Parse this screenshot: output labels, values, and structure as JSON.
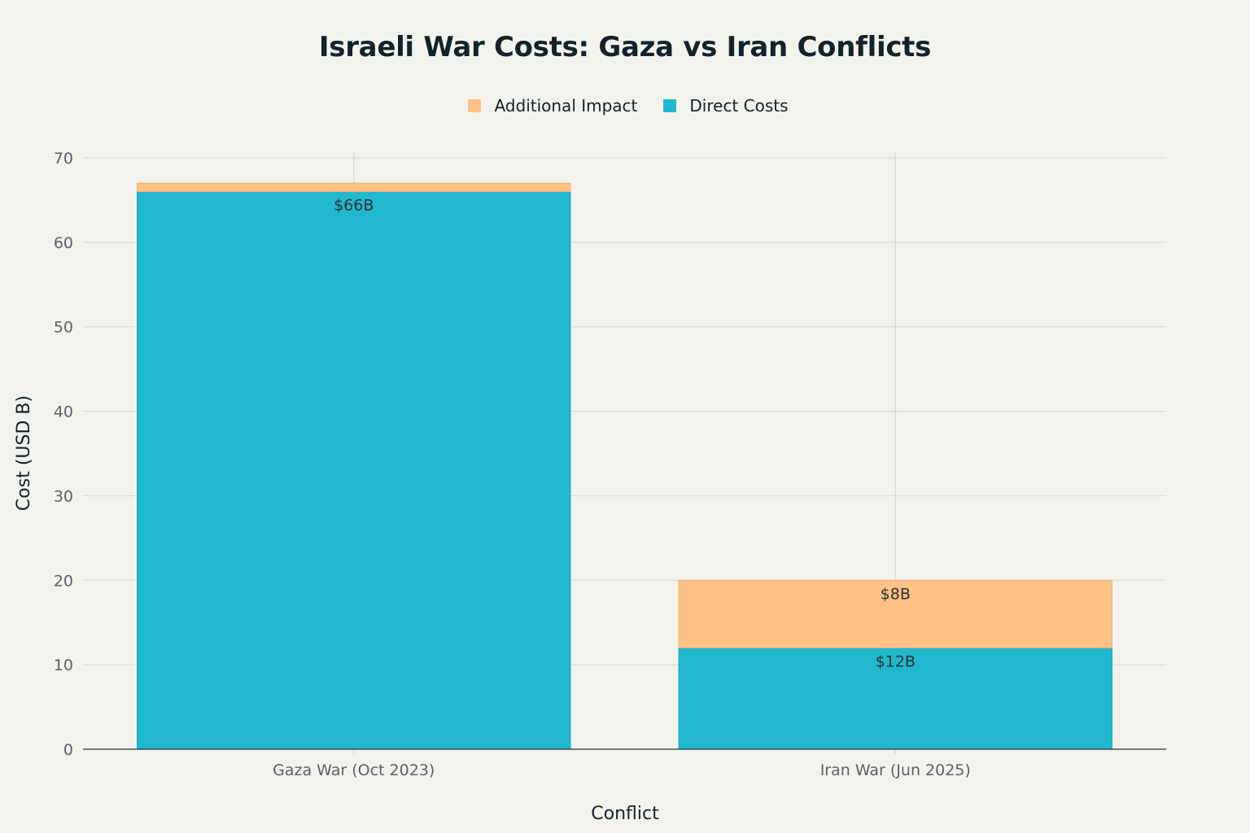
{
  "chart_data": {
    "type": "bar",
    "stacked": true,
    "title": "Israeli War Costs: Gaza vs Iran Conflicts",
    "xlabel": "Conflict",
    "ylabel": "Cost (USD B)",
    "categories": [
      "Gaza War (Oct 2023)",
      "Iran War (Jun 2025)"
    ],
    "series": [
      {
        "name": "Direct Costs",
        "color": "#21b7cd",
        "values": [
          66,
          12
        ],
        "labels": [
          "$66B",
          "$12B"
        ]
      },
      {
        "name": "Additional Impact",
        "color": "#ffc185",
        "values": [
          1,
          8
        ],
        "labels": [
          "",
          "$8B"
        ]
      }
    ],
    "legend_order": [
      "Additional Impact",
      "Direct Costs"
    ],
    "legend_position": "top-center",
    "ylim": [
      0,
      70
    ],
    "yticks": [
      0,
      10,
      20,
      30,
      40,
      50,
      60,
      70
    ],
    "grid": true
  }
}
